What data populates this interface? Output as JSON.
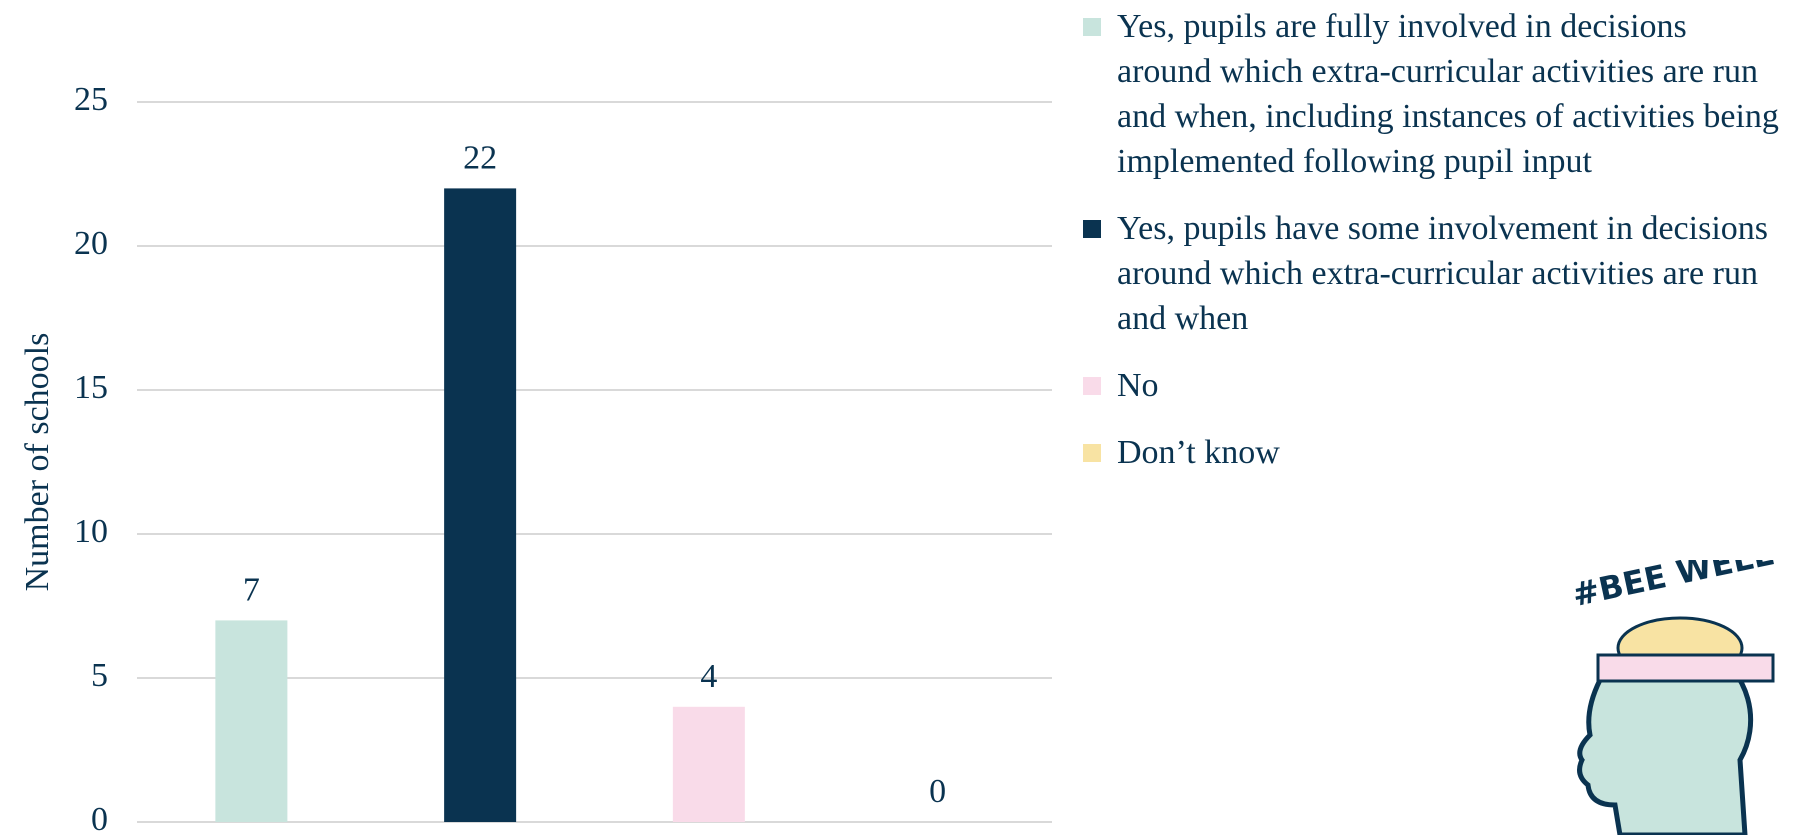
{
  "chart_data": {
    "type": "bar",
    "y_label": "Number of schools",
    "series": [
      {
        "name": "Yes, pupils are fully involved in decisions around which extra-curricular activities are run and when, including instances of activities being implemented following pupil input",
        "color": "#c8e4dd",
        "values": [
          7
        ]
      },
      {
        "name": "Yes, pupils have some involvement in decisions around which extra-curricular activities are run and when",
        "color": "#0a3350",
        "values": [
          22
        ]
      },
      {
        "name": "No",
        "color": "#f9dbe9",
        "values": [
          4
        ]
      },
      {
        "name": "Don’t know",
        "color": "#f8e3a3",
        "values": [
          0
        ]
      }
    ],
    "ylim": [
      0,
      25
    ],
    "yticks": [
      0,
      5,
      10,
      15,
      20,
      25
    ],
    "grid": true,
    "legend": "right"
  },
  "logo_text": "#BEE WELL"
}
